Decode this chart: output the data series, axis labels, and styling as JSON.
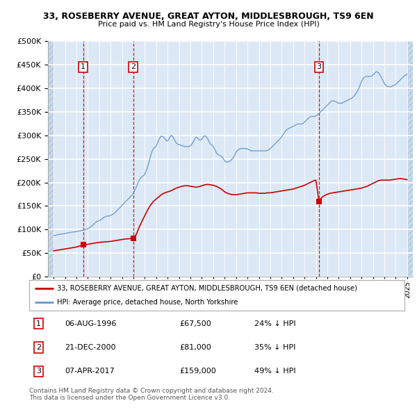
{
  "title1": "33, ROSEBERRY AVENUE, GREAT AYTON, MIDDLESBROUGH, TS9 6EN",
  "title2": "Price paid vs. HM Land Registry's House Price Index (HPI)",
  "legend_line1": "33, ROSEBERRY AVENUE, GREAT AYTON, MIDDLESBROUGH, TS9 6EN (detached house)",
  "legend_line2": "HPI: Average price, detached house, North Yorkshire",
  "transactions": [
    {
      "num": 1,
      "date": "06-AUG-1996",
      "price": 67500,
      "pct": "24%",
      "year": 1996.58
    },
    {
      "num": 2,
      "date": "21-DEC-2000",
      "price": 81000,
      "pct": "35%",
      "year": 2000.97
    },
    {
      "num": 3,
      "date": "07-APR-2017",
      "price": 159000,
      "pct": "49%",
      "year": 2017.27
    }
  ],
  "hpi_x": [
    1994.0,
    1994.083,
    1994.167,
    1994.25,
    1994.333,
    1994.417,
    1994.5,
    1994.583,
    1994.667,
    1994.75,
    1994.833,
    1994.917,
    1995.0,
    1995.083,
    1995.167,
    1995.25,
    1995.333,
    1995.417,
    1995.5,
    1995.583,
    1995.667,
    1995.75,
    1995.833,
    1995.917,
    1996.0,
    1996.083,
    1996.167,
    1996.25,
    1996.333,
    1996.417,
    1996.5,
    1996.583,
    1996.667,
    1996.75,
    1996.833,
    1996.917,
    1997.0,
    1997.083,
    1997.167,
    1997.25,
    1997.333,
    1997.417,
    1997.5,
    1997.583,
    1997.667,
    1997.75,
    1997.833,
    1997.917,
    1998.0,
    1998.083,
    1998.167,
    1998.25,
    1998.333,
    1998.417,
    1998.5,
    1998.583,
    1998.667,
    1998.75,
    1998.833,
    1998.917,
    1999.0,
    1999.083,
    1999.167,
    1999.25,
    1999.333,
    1999.417,
    1999.5,
    1999.583,
    1999.667,
    1999.75,
    1999.833,
    1999.917,
    2000.0,
    2000.083,
    2000.167,
    2000.25,
    2000.333,
    2000.417,
    2000.5,
    2000.583,
    2000.667,
    2000.75,
    2000.833,
    2000.917,
    2001.0,
    2001.083,
    2001.167,
    2001.25,
    2001.333,
    2001.417,
    2001.5,
    2001.583,
    2001.667,
    2001.75,
    2001.833,
    2001.917,
    2002.0,
    2002.083,
    2002.167,
    2002.25,
    2002.333,
    2002.417,
    2002.5,
    2002.583,
    2002.667,
    2002.75,
    2002.833,
    2002.917,
    2003.0,
    2003.083,
    2003.167,
    2003.25,
    2003.333,
    2003.417,
    2003.5,
    2003.583,
    2003.667,
    2003.75,
    2003.833,
    2003.917,
    2004.0,
    2004.083,
    2004.167,
    2004.25,
    2004.333,
    2004.417,
    2004.5,
    2004.583,
    2004.667,
    2004.75,
    2004.833,
    2004.917,
    2005.0,
    2005.083,
    2005.167,
    2005.25,
    2005.333,
    2005.417,
    2005.5,
    2005.583,
    2005.667,
    2005.75,
    2005.833,
    2005.917,
    2006.0,
    2006.083,
    2006.167,
    2006.25,
    2006.333,
    2006.417,
    2006.5,
    2006.583,
    2006.667,
    2006.75,
    2006.833,
    2006.917,
    2007.0,
    2007.083,
    2007.167,
    2007.25,
    2007.333,
    2007.417,
    2007.5,
    2007.583,
    2007.667,
    2007.75,
    2007.833,
    2007.917,
    2008.0,
    2008.083,
    2008.167,
    2008.25,
    2008.333,
    2008.417,
    2008.5,
    2008.583,
    2008.667,
    2008.75,
    2008.833,
    2008.917,
    2009.0,
    2009.083,
    2009.167,
    2009.25,
    2009.333,
    2009.417,
    2009.5,
    2009.583,
    2009.667,
    2009.75,
    2009.833,
    2009.917,
    2010.0,
    2010.083,
    2010.167,
    2010.25,
    2010.333,
    2010.417,
    2010.5,
    2010.583,
    2010.667,
    2010.75,
    2010.833,
    2010.917,
    2011.0,
    2011.083,
    2011.167,
    2011.25,
    2011.333,
    2011.417,
    2011.5,
    2011.583,
    2011.667,
    2011.75,
    2011.833,
    2011.917,
    2012.0,
    2012.083,
    2012.167,
    2012.25,
    2012.333,
    2012.417,
    2012.5,
    2012.583,
    2012.667,
    2012.75,
    2012.833,
    2012.917,
    2013.0,
    2013.083,
    2013.167,
    2013.25,
    2013.333,
    2013.417,
    2013.5,
    2013.583,
    2013.667,
    2013.75,
    2013.833,
    2013.917,
    2014.0,
    2014.083,
    2014.167,
    2014.25,
    2014.333,
    2014.417,
    2014.5,
    2014.583,
    2014.667,
    2014.75,
    2014.833,
    2014.917,
    2015.0,
    2015.083,
    2015.167,
    2015.25,
    2015.333,
    2015.417,
    2015.5,
    2015.583,
    2015.667,
    2015.75,
    2015.833,
    2015.917,
    2016.0,
    2016.083,
    2016.167,
    2016.25,
    2016.333,
    2016.417,
    2016.5,
    2016.583,
    2016.667,
    2016.75,
    2016.833,
    2016.917,
    2017.0,
    2017.083,
    2017.167,
    2017.25,
    2017.333,
    2017.417,
    2017.5,
    2017.583,
    2017.667,
    2017.75,
    2017.833,
    2017.917,
    2018.0,
    2018.083,
    2018.167,
    2018.25,
    2018.333,
    2018.417,
    2018.5,
    2018.583,
    2018.667,
    2018.75,
    2018.833,
    2018.917,
    2019.0,
    2019.083,
    2019.167,
    2019.25,
    2019.333,
    2019.417,
    2019.5,
    2019.583,
    2019.667,
    2019.75,
    2019.833,
    2019.917,
    2020.0,
    2020.083,
    2020.167,
    2020.25,
    2020.333,
    2020.417,
    2020.5,
    2020.583,
    2020.667,
    2020.75,
    2020.833,
    2020.917,
    2021.0,
    2021.083,
    2021.167,
    2021.25,
    2021.333,
    2021.417,
    2021.5,
    2021.583,
    2021.667,
    2021.75,
    2021.833,
    2021.917,
    2022.0,
    2022.083,
    2022.167,
    2022.25,
    2022.333,
    2022.417,
    2022.5,
    2022.583,
    2022.667,
    2022.75,
    2022.833,
    2022.917,
    2023.0,
    2023.083,
    2023.167,
    2023.25,
    2023.333,
    2023.417,
    2023.5,
    2023.583,
    2023.667,
    2023.75,
    2023.833,
    2023.917,
    2024.0,
    2024.083,
    2024.167,
    2024.25,
    2024.333,
    2024.417,
    2024.5,
    2024.583,
    2024.667,
    2024.75,
    2024.917,
    2025.0
  ],
  "hpi_y": [
    87000,
    87500,
    88000,
    88500,
    89000,
    89500,
    90000,
    90200,
    90500,
    90800,
    91000,
    91200,
    91500,
    92000,
    92500,
    93000,
    93500,
    94000,
    94200,
    94500,
    94800,
    95000,
    95200,
    95400,
    95600,
    96000,
    96500,
    97000,
    97500,
    98000,
    98500,
    99000,
    99500,
    100000,
    100500,
    101000,
    102000,
    103000,
    104500,
    106000,
    107500,
    109000,
    111000,
    113000,
    115000,
    116500,
    117500,
    118000,
    119000,
    120000,
    121500,
    123000,
    124500,
    126000,
    127000,
    128000,
    128500,
    128800,
    129000,
    129200,
    130000,
    131000,
    132000,
    133500,
    135000,
    137000,
    139000,
    141000,
    143000,
    145000,
    147000,
    149000,
    152000,
    154000,
    156000,
    158000,
    160000,
    162000,
    164000,
    166000,
    168000,
    170000,
    172000,
    174000,
    178000,
    182000,
    186000,
    190000,
    195000,
    200000,
    205000,
    208000,
    210000,
    212000,
    214000,
    215000,
    218000,
    223000,
    228000,
    234000,
    241000,
    248000,
    256000,
    263000,
    268000,
    272000,
    274000,
    275000,
    278000,
    282000,
    287000,
    292000,
    295000,
    298000,
    298000,
    297000,
    295000,
    293000,
    290000,
    288000,
    288000,
    291000,
    295000,
    298000,
    300000,
    298000,
    295000,
    291000,
    287000,
    284000,
    282000,
    281000,
    280000,
    280000,
    279000,
    278000,
    277000,
    277000,
    276000,
    276000,
    276000,
    276000,
    276000,
    277000,
    278000,
    280000,
    283000,
    286000,
    290000,
    294000,
    296000,
    295000,
    293000,
    291000,
    290000,
    290000,
    292000,
    295000,
    298000,
    299000,
    298000,
    296000,
    293000,
    289000,
    285000,
    282000,
    280000,
    279000,
    276000,
    272000,
    268000,
    264000,
    261000,
    259000,
    258000,
    257000,
    256000,
    254000,
    252000,
    249000,
    246000,
    244000,
    243000,
    243000,
    244000,
    245000,
    246000,
    248000,
    250000,
    253000,
    256000,
    260000,
    264000,
    267000,
    269000,
    270000,
    271000,
    272000,
    272000,
    272000,
    272000,
    272000,
    272000,
    272000,
    271000,
    270000,
    269000,
    268000,
    267000,
    267000,
    267000,
    267000,
    267000,
    267000,
    267000,
    267000,
    267000,
    267000,
    267000,
    267000,
    267000,
    267000,
    267000,
    267000,
    267000,
    268000,
    269000,
    270000,
    272000,
    274000,
    276000,
    278000,
    280000,
    282000,
    284000,
    286000,
    288000,
    290000,
    292000,
    294000,
    297000,
    300000,
    303000,
    306000,
    309000,
    311000,
    313000,
    314000,
    315000,
    316000,
    317000,
    318000,
    319000,
    320000,
    321000,
    322000,
    323000,
    324000,
    324000,
    324000,
    324000,
    324000,
    325000,
    326000,
    328000,
    330000,
    332000,
    334000,
    336000,
    338000,
    339000,
    340000,
    340000,
    340000,
    340000,
    340000,
    341000,
    342000,
    344000,
    346000,
    348000,
    350000,
    352000,
    354000,
    356000,
    358000,
    360000,
    362000,
    364000,
    366000,
    368000,
    370000,
    372000,
    373000,
    373000,
    373000,
    372000,
    371000,
    370000,
    369000,
    368000,
    368000,
    368000,
    368000,
    369000,
    370000,
    371000,
    372000,
    373000,
    374000,
    375000,
    376000,
    377000,
    378000,
    379000,
    381000,
    383000,
    385000,
    388000,
    391000,
    395000,
    399000,
    404000,
    409000,
    414000,
    418000,
    421000,
    423000,
    424000,
    425000,
    425000,
    425000,
    425000,
    425000,
    425000,
    426000,
    428000,
    430000,
    432000,
    434000,
    435000,
    434000,
    432000,
    429000,
    426000,
    422000,
    418000,
    414000,
    410000,
    407000,
    405000,
    404000,
    403000,
    403000,
    403000,
    403000,
    404000,
    405000,
    406000,
    407000,
    408000,
    410000,
    412000,
    414000,
    416000,
    418000,
    420000,
    422000,
    424000,
    426000,
    428000,
    430000
  ],
  "red_x": [
    1994.0,
    1994.25,
    1994.5,
    1994.75,
    1995.0,
    1995.25,
    1995.5,
    1995.75,
    1996.0,
    1996.25,
    1996.58,
    1996.75,
    1997.0,
    1997.25,
    1997.5,
    1997.75,
    1998.0,
    1998.25,
    1998.5,
    1998.75,
    1999.0,
    1999.25,
    1999.5,
    1999.75,
    2000.0,
    2000.25,
    2000.5,
    2000.75,
    2000.97,
    2001.25,
    2001.5,
    2001.75,
    2002.0,
    2002.25,
    2002.5,
    2002.75,
    2003.0,
    2003.25,
    2003.5,
    2003.75,
    2004.0,
    2004.25,
    2004.5,
    2004.75,
    2005.0,
    2005.25,
    2005.5,
    2005.75,
    2006.0,
    2006.25,
    2006.5,
    2006.75,
    2007.0,
    2007.25,
    2007.5,
    2007.75,
    2008.0,
    2008.25,
    2008.5,
    2008.75,
    2009.0,
    2009.25,
    2009.5,
    2009.75,
    2010.0,
    2010.25,
    2010.5,
    2010.75,
    2011.0,
    2011.25,
    2011.5,
    2011.75,
    2012.0,
    2012.25,
    2012.5,
    2012.75,
    2013.0,
    2013.25,
    2013.5,
    2013.75,
    2014.0,
    2014.25,
    2014.5,
    2014.75,
    2015.0,
    2015.25,
    2015.5,
    2015.75,
    2016.0,
    2016.25,
    2016.5,
    2016.75,
    2017.0,
    2017.27,
    2017.5,
    2017.75,
    2018.0,
    2018.25,
    2018.5,
    2018.75,
    2019.0,
    2019.25,
    2019.5,
    2019.75,
    2020.0,
    2020.25,
    2020.5,
    2020.75,
    2021.0,
    2021.25,
    2021.5,
    2021.75,
    2022.0,
    2022.25,
    2022.5,
    2022.75,
    2023.0,
    2023.25,
    2023.5,
    2023.75,
    2024.0,
    2024.25,
    2024.5,
    2024.75,
    2025.0
  ],
  "red_y": [
    55000,
    56000,
    57000,
    58000,
    59000,
    60000,
    61000,
    62000,
    63000,
    65000,
    67500,
    68000,
    69000,
    70000,
    71000,
    72000,
    73000,
    73500,
    74000,
    74500,
    75000,
    76000,
    77000,
    78000,
    79000,
    80000,
    80500,
    81000,
    81000,
    90000,
    105000,
    118000,
    130000,
    142000,
    152000,
    160000,
    165000,
    170000,
    175000,
    178000,
    180000,
    182000,
    185000,
    188000,
    190000,
    192000,
    193000,
    193000,
    192000,
    191000,
    190000,
    191000,
    193000,
    195000,
    196000,
    195000,
    194000,
    192000,
    189000,
    185000,
    180000,
    177000,
    175000,
    174000,
    174000,
    175000,
    176000,
    177000,
    178000,
    178000,
    178000,
    178000,
    177000,
    177000,
    177000,
    178000,
    178000,
    179000,
    180000,
    181000,
    182000,
    183000,
    184000,
    185000,
    186000,
    188000,
    190000,
    192000,
    194000,
    197000,
    200000,
    203000,
    205000,
    159000,
    168000,
    172000,
    175000,
    177000,
    178000,
    179000,
    180000,
    181000,
    182000,
    183000,
    184000,
    185000,
    186000,
    187000,
    188000,
    190000,
    192000,
    195000,
    198000,
    201000,
    204000,
    205000,
    205000,
    205000,
    205000,
    206000,
    207000,
    208000,
    208000,
    207000,
    206000
  ],
  "ylim": [
    0,
    500000
  ],
  "xlim_start": 1993.5,
  "xlim_end": 2025.5,
  "hpi_color": "#6699cc",
  "red_color": "#cc0000",
  "dashed_color": "#cc0000",
  "background_color": "#ffffff",
  "plot_bg_color": "#dce8f5",
  "hatch_bg_color": "#c8d8ec",
  "hatch_edge_color": "#b0c4de",
  "footer": "Contains HM Land Registry data © Crown copyright and database right 2024.\nThis data is licensed under the Open Government Licence v3.0."
}
